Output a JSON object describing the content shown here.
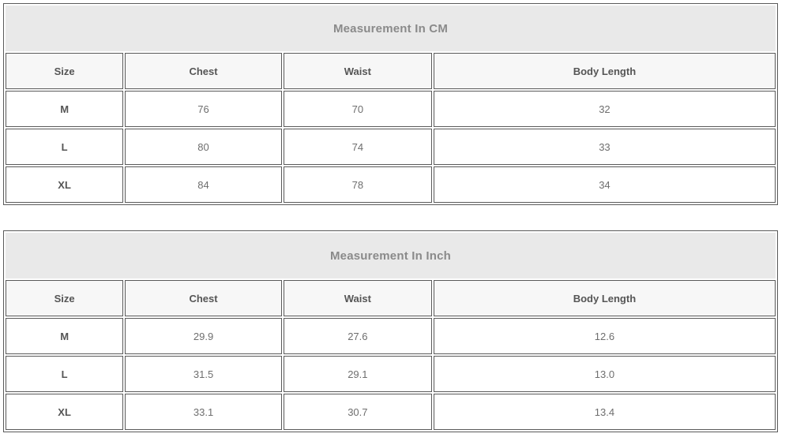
{
  "tables": [
    {
      "title": "Measurement In CM",
      "columns": [
        "Size",
        "Chest",
        "Waist",
        "Body Length"
      ],
      "rows": [
        {
          "size": "M",
          "values": [
            "76",
            "70",
            "32"
          ]
        },
        {
          "size": "L",
          "values": [
            "80",
            "74",
            "33"
          ]
        },
        {
          "size": "XL",
          "values": [
            "84",
            "78",
            "34"
          ]
        }
      ]
    },
    {
      "title": "Measurement In Inch",
      "columns": [
        "Size",
        "Chest",
        "Waist",
        "Body Length"
      ],
      "rows": [
        {
          "size": "M",
          "values": [
            "29.9",
            "27.6",
            "12.6"
          ]
        },
        {
          "size": "L",
          "values": [
            "31.5",
            "29.1",
            "13.0"
          ]
        },
        {
          "size": "XL",
          "values": [
            "33.1",
            "30.7",
            "13.4"
          ]
        }
      ]
    }
  ],
  "colors": {
    "title_background": "#e9e9e9",
    "header_background": "#f7f7f7",
    "row_background": "#ffffff",
    "border": "#5a5a5a",
    "title_text": "#8a8a8a",
    "header_text": "#555555",
    "value_text": "#6e6e6e"
  }
}
